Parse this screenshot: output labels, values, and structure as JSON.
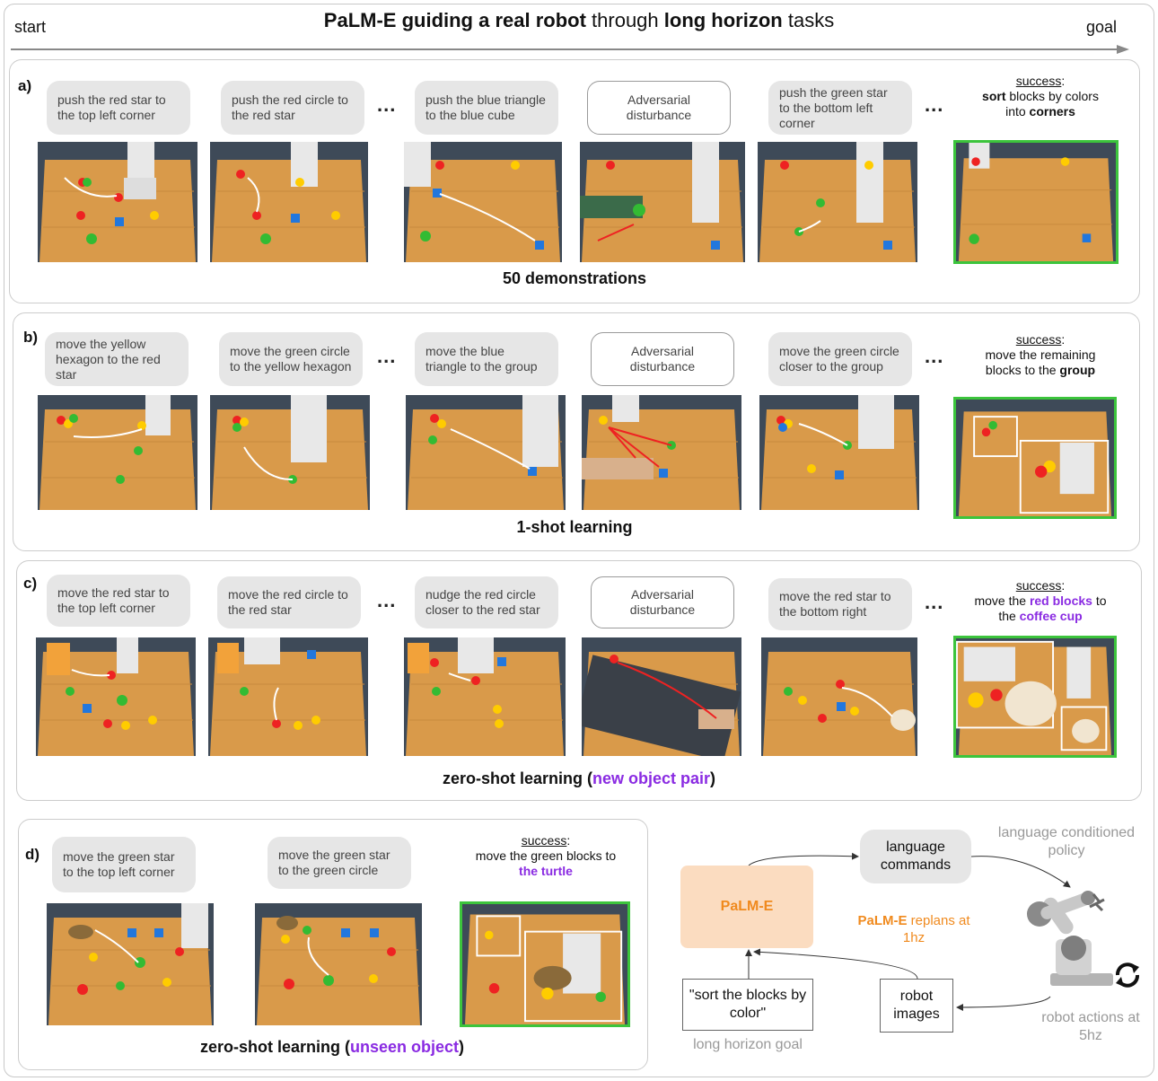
{
  "header": {
    "title_parts": [
      "PaLM-E guiding a real robot",
      " through ",
      "long horizon",
      " tasks"
    ],
    "start": "start",
    "goal": "goal"
  },
  "rows": [
    {
      "label": "a)",
      "bubbles": [
        "push the red star to the top left corner",
        "push the red circle to the red star",
        "push the blue triangle to the blue cube",
        "Adversarial disturbance",
        "push the green star to the bottom left corner"
      ],
      "success_head": "success",
      "success_text": [
        [
          "sort",
          true
        ],
        [
          " blocks by colors into ",
          false
        ],
        [
          "corners",
          true
        ]
      ],
      "caption": "50 demonstrations"
    },
    {
      "label": "b)",
      "bubbles": [
        "move the yellow hexagon to the red star",
        "move the green circle to the yellow hexagon",
        "move the blue triangle to the group",
        "Adversarial disturbance",
        "move the green circle closer to the group"
      ],
      "success_head": "success",
      "success_text": [
        [
          "move the remaining blocks to the ",
          false
        ],
        [
          "group",
          true
        ]
      ],
      "caption": "1-shot learning"
    },
    {
      "label": "c)",
      "bubbles": [
        "move the red star to the top left corner",
        "move the red circle to the red star",
        "nudge the red circle closer to the red star",
        "Adversarial disturbance",
        "move the red star to the bottom right"
      ],
      "success_head": "success",
      "success_text": [
        [
          "move the ",
          false
        ],
        [
          "red blocks",
          "purple"
        ],
        [
          " to the ",
          false
        ],
        [
          "coffee cup",
          "purple"
        ]
      ],
      "caption_pre": "zero-shot learning (",
      "caption_em": "new object pair",
      "caption_post": ")"
    },
    {
      "label": "d)",
      "bubbles": [
        "move the green star to the top left corner",
        "move the green star to the green circle"
      ],
      "success_head": "success",
      "success_text": [
        [
          "move the green blocks to ",
          false
        ],
        [
          "the turtle",
          "purple"
        ]
      ],
      "caption_pre": "zero-shot learning (",
      "caption_em": "unseen object",
      "caption_post": ")"
    }
  ],
  "ellipsis": "...",
  "diagram": {
    "palm": "PaLM-E",
    "lang_commands": "language commands",
    "policy": "language conditioned policy",
    "replans_bold": "PaLM-E",
    "replans_rest": " replans at 1hz",
    "goal_text": "\"sort the blocks by color\"",
    "goal_caption": "long horizon goal",
    "robot_images": "robot images",
    "robot_actions": "robot actions at 5hz"
  },
  "colors": {
    "accent_purple": "#8a2be2",
    "palm_orange": "#f08a1e",
    "palm_fill": "#fbdcc0",
    "success_green": "#3cc43c"
  }
}
